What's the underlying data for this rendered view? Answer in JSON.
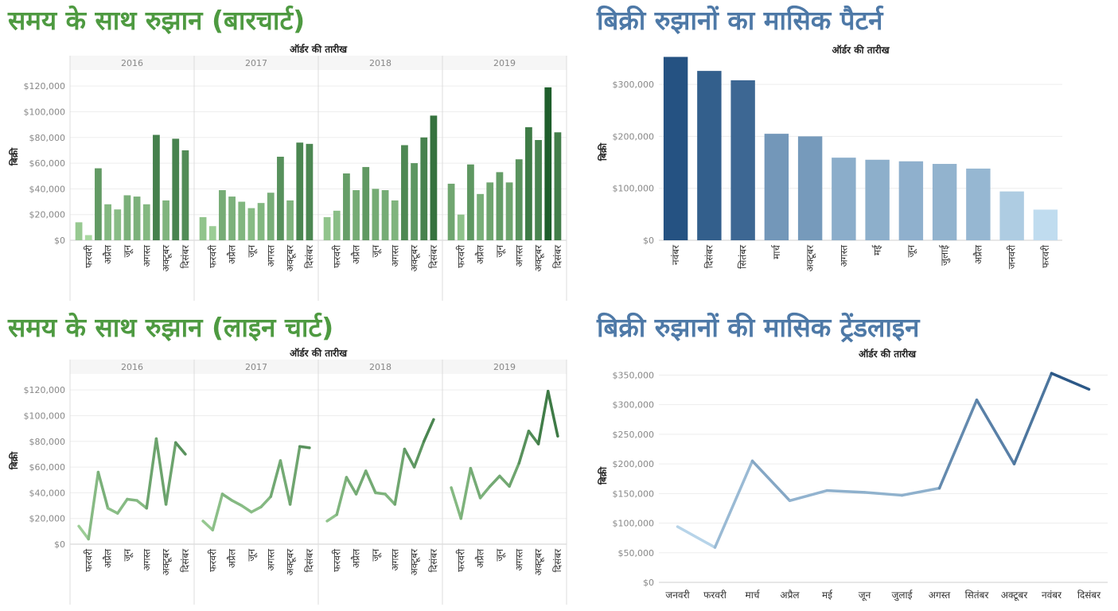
{
  "colors": {
    "green_title": "#4e9a41",
    "blue_title": "#4e79a7",
    "green_light": "#a8d8a0",
    "green_dark": "#1e5e2b",
    "blue_light": "#c0dcef",
    "blue_dark": "#255282"
  },
  "panels": {
    "bar_green": {
      "title": "समय के साथ रुझान (बारचार्ट)"
    },
    "bar_blue": {
      "title": "बिक्री रुझानों का मासिक पैटर्न"
    },
    "line_green": {
      "title": "समय के साथ रुझान (लाइन चार्ट)"
    },
    "line_blue": {
      "title": "बिक्री रुझानों की मासिक ट्रेंडलाइन"
    }
  },
  "chart_data": [
    {
      "type": "bar",
      "title": "समय के साथ रुझान (बारचार्ट)",
      "column_header": "ऑर्डर की तारीख",
      "ylabel": "बिक्री",
      "ylim": [
        0,
        130000
      ],
      "yticks": [
        0,
        20000,
        40000,
        60000,
        80000,
        100000,
        120000
      ],
      "ytick_labels": [
        "$0",
        "$20,000",
        "$40,000",
        "$60,000",
        "$80,000",
        "$100,000",
        "$120,000"
      ],
      "years": [
        "2016",
        "2017",
        "2018",
        "2019"
      ],
      "month_labels": [
        "फरवरी",
        "अप्रैल",
        "जून",
        "अगस्त",
        "अक्टूबर",
        "दिसंबर"
      ],
      "series": [
        {
          "name": "2016",
          "values": [
            14000,
            4000,
            56000,
            28000,
            24000,
            35000,
            34000,
            28000,
            82000,
            31000,
            79000,
            70000
          ]
        },
        {
          "name": "2017",
          "values": [
            18000,
            11000,
            39000,
            34000,
            30000,
            25000,
            29000,
            37000,
            65000,
            31000,
            76000,
            75000
          ]
        },
        {
          "name": "2018",
          "values": [
            18000,
            23000,
            52000,
            39000,
            57000,
            40000,
            39000,
            31000,
            74000,
            60000,
            80000,
            97000
          ]
        },
        {
          "name": "2019",
          "values": [
            44000,
            20000,
            59000,
            36000,
            45000,
            53000,
            45000,
            63000,
            88000,
            78000,
            119000,
            84000
          ]
        }
      ],
      "color_scale": "sales value (light to dark green)"
    },
    {
      "type": "bar",
      "title": "बिक्री रुझानों का मासिक पैटर्न",
      "column_header": "ऑर्डर की तारीख",
      "ylabel": "बिक्री",
      "ylim": [
        0,
        340000
      ],
      "yticks": [
        0,
        100000,
        200000,
        300000
      ],
      "ytick_labels": [
        "$0",
        "$100,000",
        "$200,000",
        "$300,000"
      ],
      "categories": [
        "नवंबर",
        "दिसंबर",
        "सितंबर",
        "मार्च",
        "अक्टूबर",
        "अगस्त",
        "मई",
        "जून",
        "जुलाई",
        "अप्रैल",
        "जनवरी",
        "फरवरी"
      ],
      "values": [
        353000,
        326000,
        308000,
        205000,
        200000,
        159000,
        155000,
        152000,
        147000,
        138000,
        94000,
        59000
      ],
      "color_scale": "sales value (light to dark blue)"
    },
    {
      "type": "line",
      "title": "समय के साथ रुझान (लाइन चार्ट)",
      "column_header": "ऑर्डर की तारीख",
      "ylabel": "बिक्री",
      "ylim": [
        0,
        130000
      ],
      "yticks": [
        0,
        20000,
        40000,
        60000,
        80000,
        100000,
        120000
      ],
      "ytick_labels": [
        "$0",
        "$20,000",
        "$40,000",
        "$60,000",
        "$80,000",
        "$100,000",
        "$120,000"
      ],
      "years": [
        "2016",
        "2017",
        "2018",
        "2019"
      ],
      "month_labels": [
        "फरवरी",
        "अप्रैल",
        "जून",
        "अगस्त",
        "अक्टूबर",
        "दिसंबर"
      ],
      "series": [
        {
          "name": "2016",
          "values": [
            14000,
            4000,
            56000,
            28000,
            24000,
            35000,
            34000,
            28000,
            82000,
            31000,
            79000,
            70000
          ]
        },
        {
          "name": "2017",
          "values": [
            18000,
            11000,
            39000,
            34000,
            30000,
            25000,
            29000,
            37000,
            65000,
            31000,
            76000,
            75000
          ]
        },
        {
          "name": "2018",
          "values": [
            18000,
            23000,
            52000,
            39000,
            57000,
            40000,
            39000,
            31000,
            74000,
            60000,
            80000,
            97000
          ]
        },
        {
          "name": "2019",
          "values": [
            44000,
            20000,
            59000,
            36000,
            45000,
            53000,
            45000,
            63000,
            88000,
            78000,
            119000,
            84000
          ]
        }
      ]
    },
    {
      "type": "line",
      "title": "बिक्री रुझानों की मासिक ट्रेंडलाइन",
      "column_header": "ऑर्डर की तारीख",
      "ylabel": "बिक्री",
      "ylim": [
        0,
        360000
      ],
      "yticks": [
        0,
        50000,
        100000,
        150000,
        200000,
        250000,
        300000,
        350000
      ],
      "ytick_labels": [
        "$0",
        "$50,000",
        "$100,000",
        "$150,000",
        "$200,000",
        "$250,000",
        "$300,000",
        "$350,000"
      ],
      "categories": [
        "जनवरी",
        "फरवरी",
        "मार्च",
        "अप्रैल",
        "मई",
        "जून",
        "जुलाई",
        "अगस्त",
        "सितंबर",
        "अक्टूबर",
        "नवंबर",
        "दिसंबर"
      ],
      "values": [
        94000,
        59000,
        205000,
        138000,
        155000,
        152000,
        147000,
        159000,
        308000,
        200000,
        353000,
        326000
      ]
    }
  ]
}
